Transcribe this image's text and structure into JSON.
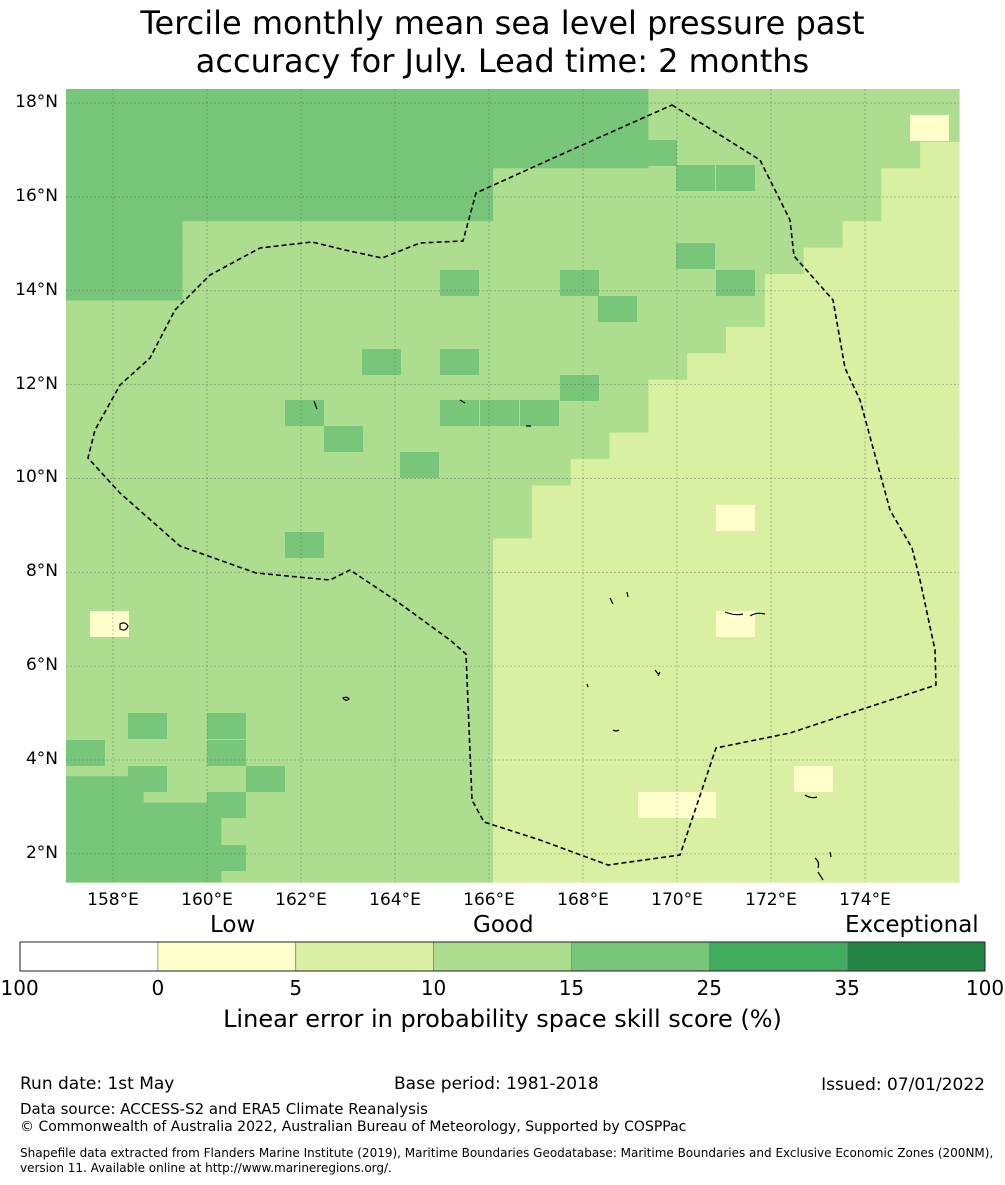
{
  "title_line1": "Tercile monthly mean sea level pressure past",
  "title_line2": "accuracy for July. Lead time: 2 months",
  "map": {
    "lon_range": [
      157.0,
      176.0
    ],
    "lat_range": [
      1.4,
      18.3
    ],
    "lon_ticks": [
      "158°E",
      "160°E",
      "162°E",
      "164°E",
      "166°E",
      "168°E",
      "170°E",
      "172°E",
      "174°E"
    ],
    "lat_ticks": [
      "18°N",
      "16°N",
      "14°N",
      "12°N",
      "10°N",
      "8°N",
      "6°N",
      "4°N",
      "2°N"
    ],
    "gridlines": true,
    "boundary": "dashed EEZ outline"
  },
  "colorbar": {
    "category_labels": [
      "Low",
      "Good",
      "Exceptional"
    ],
    "tick_labels": [
      "-100",
      "0",
      "5",
      "10",
      "15",
      "25",
      "35",
      "100"
    ],
    "colors": [
      "#ffffff",
      "#ffffcc",
      "#d9f0a3",
      "#addd8e",
      "#78c679",
      "#41ab5d",
      "#238443"
    ],
    "title": "Linear error in probability space skill score (%)"
  },
  "footer": {
    "run_date": "Run date: 1st May",
    "base_period": "Base period: 1981-2018",
    "issued": "Issued: 07/01/2022",
    "data_source": "Data source: ACCESS-S2 and ERA5 Climate Reanalysis",
    "copyright": "© Commonwealth of Australia 2022, Australian Bureau of Meteorology, Supported by COSPPac",
    "shapefile_line1": "Shapefile data extracted from Flanders Marine Institute (2019), Maritime Boundaries Geodatabase: Maritime Boundaries and Exclusive Economic Zones (200NM),",
    "shapefile_line2": "version 11. Available online at http://www.marineregions.org/."
  }
}
